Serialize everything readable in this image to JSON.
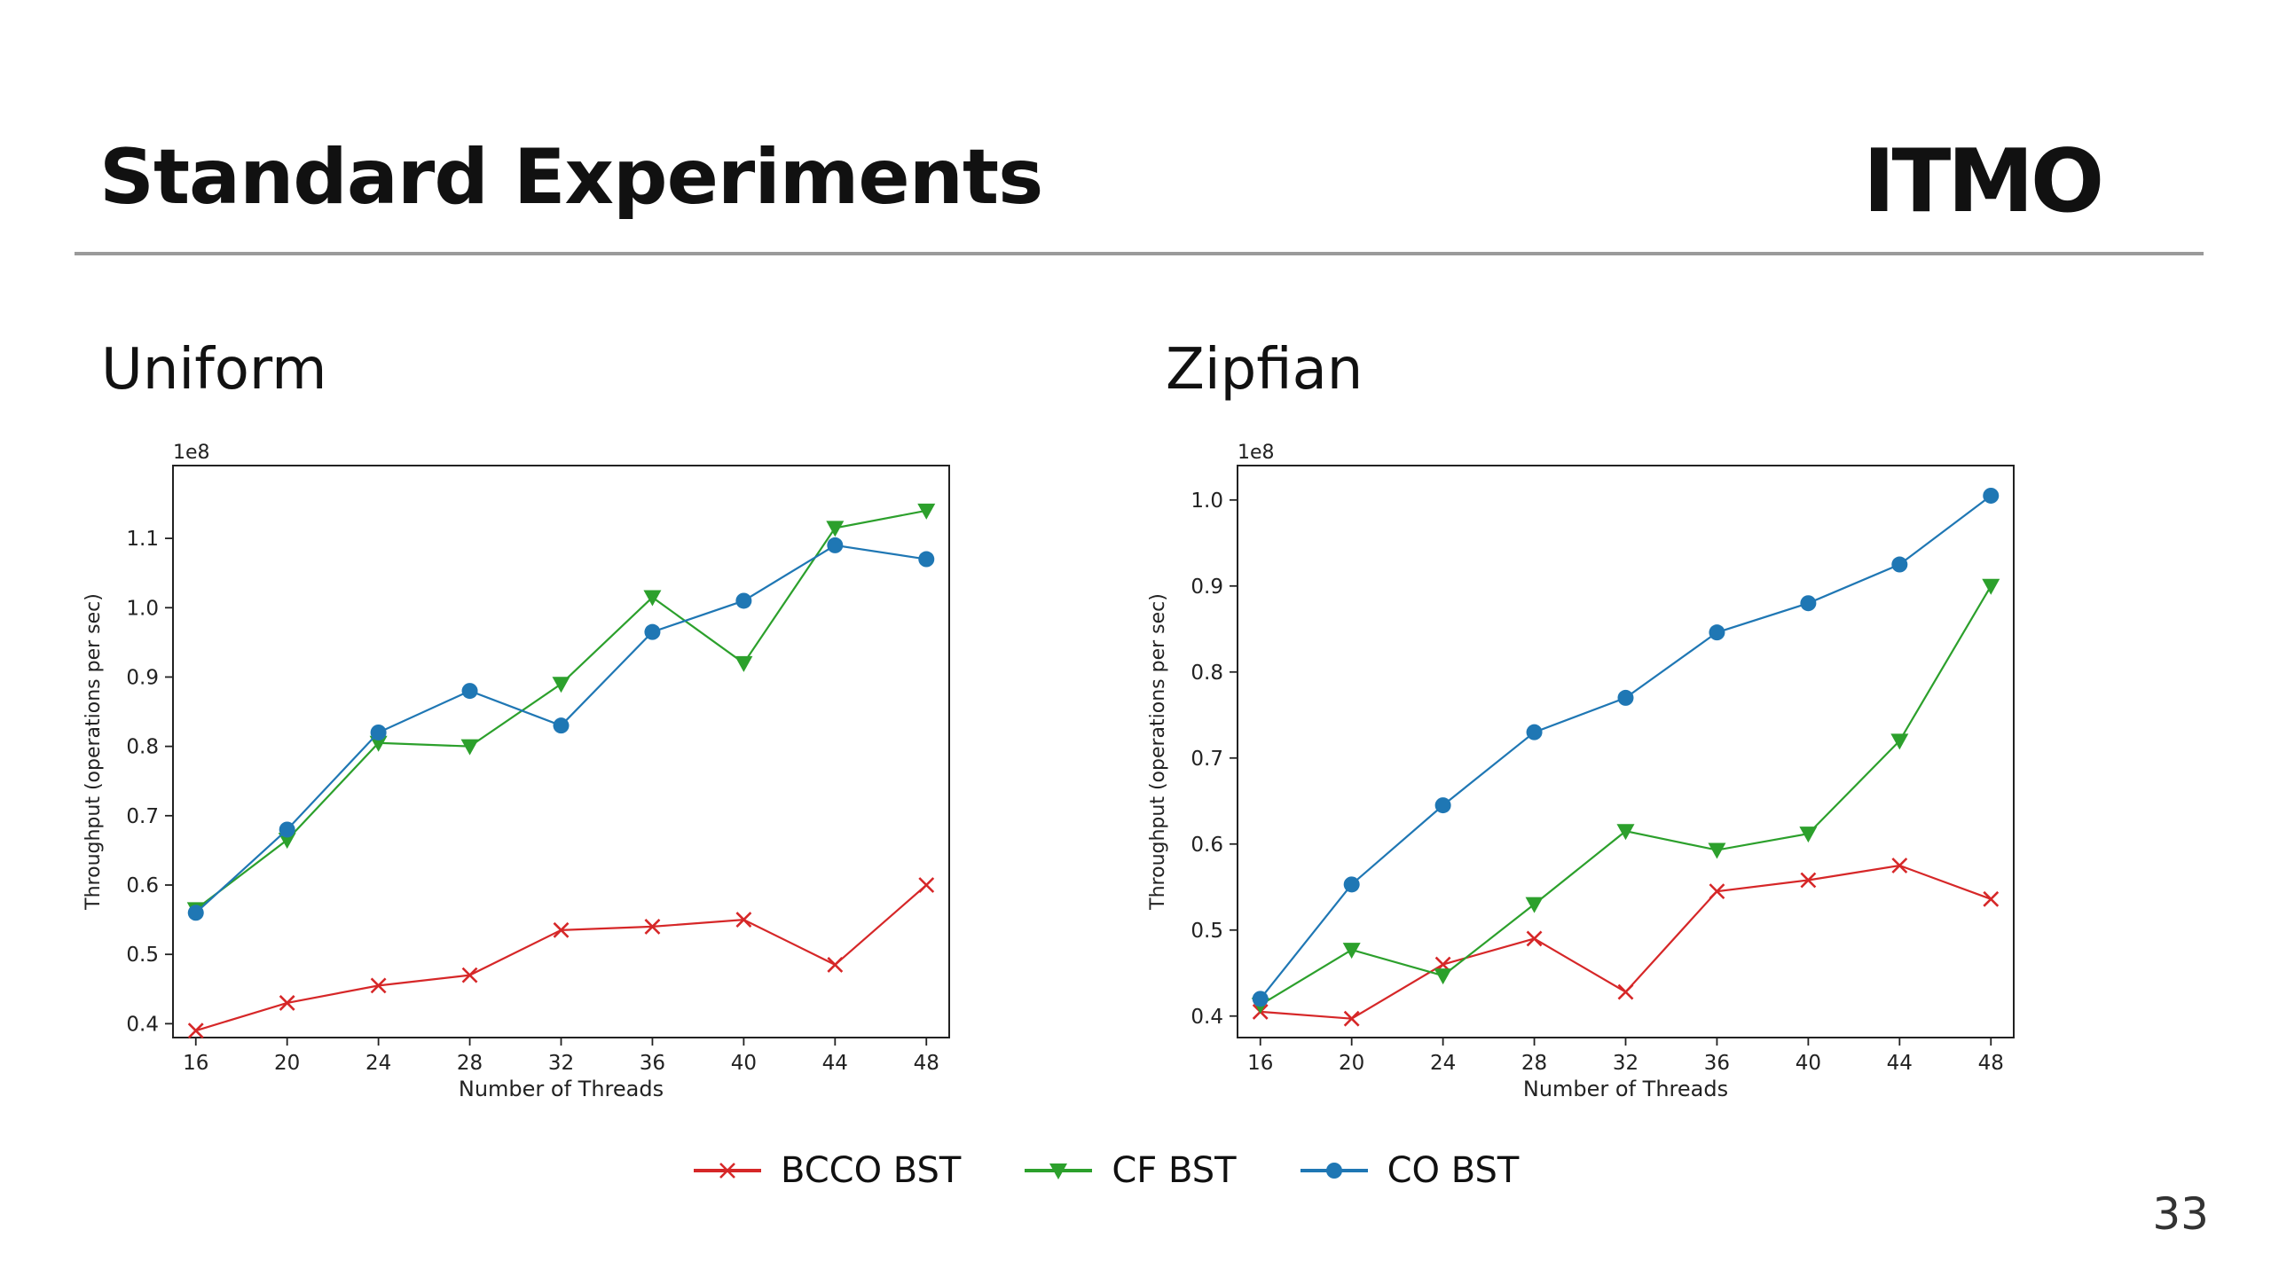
{
  "slide": {
    "title": "Standard Experiments",
    "logo_text": "ITMO",
    "page_number": "33"
  },
  "colors": {
    "BCCO BST": "#d62728",
    "CF BST": "#2ca02c",
    "CO BST": "#1f77b4"
  },
  "legend": [
    {
      "name": "BCCO BST",
      "marker": "x"
    },
    {
      "name": "CF BST",
      "marker": "triangle-down"
    },
    {
      "name": "CO BST",
      "marker": "circle"
    }
  ],
  "chart_data": [
    {
      "type": "line",
      "title": "Uniform",
      "xlabel": "Number of Threads",
      "ylabel": "Throughput (operations per sec)",
      "y_offset_label": "1e8",
      "x": [
        16,
        20,
        24,
        28,
        32,
        36,
        40,
        44,
        48
      ],
      "xticks": [
        16,
        20,
        24,
        28,
        32,
        36,
        40,
        44,
        48
      ],
      "yticks": [
        0.4,
        0.5,
        0.6,
        0.7,
        0.8,
        0.9,
        1.0,
        1.1
      ],
      "ytick_labels": [
        "0.4",
        "0.5",
        "0.6",
        "0.7",
        "0.8",
        "0.9",
        "1.0",
        "1.1"
      ],
      "xlim": [
        15,
        49
      ],
      "ylim": [
        0.38,
        1.205
      ],
      "grid": false,
      "series": [
        {
          "name": "BCCO BST",
          "values": [
            0.39,
            0.43,
            0.455,
            0.47,
            0.535,
            0.54,
            0.55,
            0.485,
            0.6
          ]
        },
        {
          "name": "CF BST",
          "values": [
            0.565,
            0.665,
            0.805,
            0.8,
            0.89,
            1.015,
            0.92,
            1.115,
            1.14
          ]
        },
        {
          "name": "CO BST",
          "values": [
            0.56,
            0.68,
            0.82,
            0.88,
            0.83,
            0.965,
            1.01,
            1.09,
            1.07
          ]
        }
      ]
    },
    {
      "type": "line",
      "title": "Zipfian",
      "xlabel": "Number of Threads",
      "ylabel": "Throughput (operations per sec)",
      "y_offset_label": "1e8",
      "x": [
        16,
        20,
        24,
        28,
        32,
        36,
        40,
        44,
        48
      ],
      "xticks": [
        16,
        20,
        24,
        28,
        32,
        36,
        40,
        44,
        48
      ],
      "yticks": [
        0.4,
        0.5,
        0.6,
        0.7,
        0.8,
        0.9,
        1.0
      ],
      "ytick_labels": [
        "0.4",
        "0.5",
        "0.6",
        "0.7",
        "0.8",
        "0.9",
        "1.0"
      ],
      "xlim": [
        15,
        49
      ],
      "ylim": [
        0.375,
        1.04
      ],
      "grid": false,
      "series": [
        {
          "name": "BCCO BST",
          "values": [
            0.405,
            0.397,
            0.46,
            0.49,
            0.428,
            0.545,
            0.558,
            0.575,
            0.536
          ]
        },
        {
          "name": "CF BST",
          "values": [
            0.413,
            0.477,
            0.447,
            0.53,
            0.615,
            0.593,
            0.612,
            0.72,
            0.9
          ]
        },
        {
          "name": "CO BST",
          "values": [
            0.42,
            0.553,
            0.645,
            0.73,
            0.77,
            0.846,
            0.88,
            0.925,
            1.005
          ]
        }
      ]
    }
  ]
}
